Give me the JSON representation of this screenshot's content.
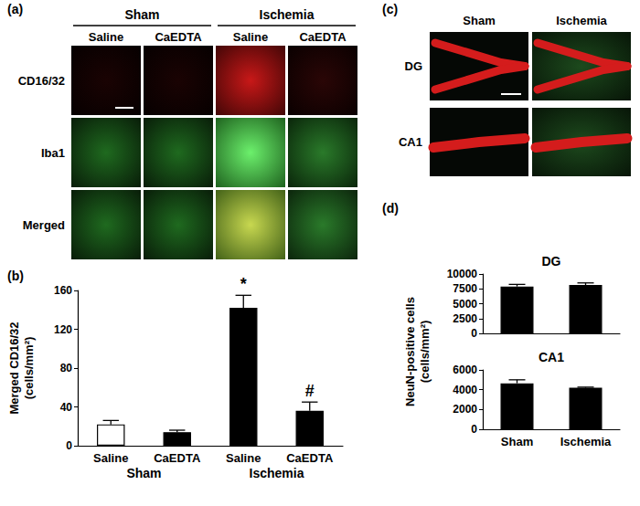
{
  "image_panels": [
    {
      "panel": "(a)",
      "groups": [
        {
          "name": "Sham",
          "span": [
            0,
            1
          ]
        },
        {
          "name": "Ischemia",
          "span": [
            2,
            3
          ]
        }
      ],
      "columns": [
        "Saline",
        "CaEDTA",
        "Saline",
        "CaEDTA"
      ],
      "rows": [
        "CD16/32",
        "Iba1",
        "Merged"
      ]
    },
    {
      "panel": "(c)",
      "columns": [
        "Sham",
        "Ischemia"
      ],
      "rows": [
        "DG",
        "CA1"
      ]
    }
  ],
  "chart_data": [
    {
      "panel": "(b)",
      "type": "bar",
      "categories": [
        "Saline",
        "CaEDTA",
        "Saline",
        "CaEDTA"
      ],
      "groups": [
        {
          "name": "Sham",
          "span": [
            0,
            1
          ]
        },
        {
          "name": "Ischemia",
          "span": [
            2,
            3
          ]
        }
      ],
      "values": [
        22,
        14,
        142,
        36
      ],
      "errors": [
        4,
        2,
        13,
        9
      ],
      "colors": [
        "#ffffff",
        "#000000",
        "#000000",
        "#000000"
      ],
      "ylabel": "Merged CD16/32\n(cells/mm²)",
      "ylim": [
        0,
        160
      ],
      "yticks": [
        0,
        40,
        80,
        120,
        160
      ],
      "grid": false,
      "annotations": [
        {
          "text": "*",
          "index": 2
        },
        {
          "text": "#",
          "index": 3
        }
      ]
    },
    {
      "panel": "(d)",
      "type": "bar",
      "title": "DG",
      "ylabel": "NeuN-positive cells\n(cells/mm²)",
      "categories": [
        "Sham",
        "Ischemia"
      ],
      "values": [
        7900,
        8150
      ],
      "errors": [
        350,
        350
      ],
      "color": "#000000",
      "ylim": [
        0,
        10000
      ],
      "yticks": [
        0,
        2500,
        5000,
        7500,
        10000
      ],
      "grid": false,
      "tick_labels": "y"
    },
    {
      "type": "bar",
      "title": "CA1",
      "categories": [
        "Sham",
        "Ischemia"
      ],
      "values": [
        4650,
        4200
      ],
      "errors": [
        350,
        60
      ],
      "color": "#000000",
      "ylim": [
        0,
        6000
      ],
      "yticks": [
        0,
        2000,
        4000,
        6000
      ],
      "grid": false
    }
  ]
}
